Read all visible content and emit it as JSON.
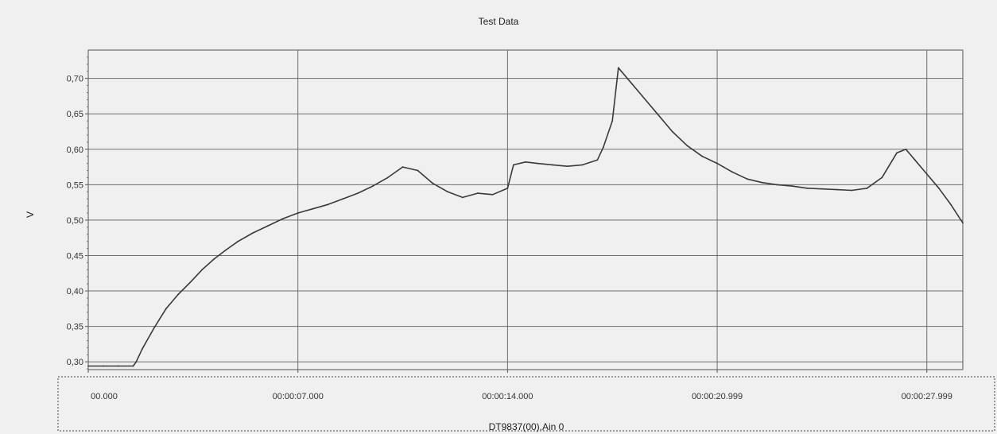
{
  "chart_data": {
    "type": "line",
    "title": "Test Data",
    "ylabel": "V",
    "xlabel": "DT9837(00).Ain 0",
    "ylim": [
      0.289,
      0.74
    ],
    "xlim": [
      0,
      29.2
    ],
    "y_ticks": [
      {
        "value": 0.3,
        "label": "0,30"
      },
      {
        "value": 0.35,
        "label": "0,35"
      },
      {
        "value": 0.4,
        "label": "0,40"
      },
      {
        "value": 0.45,
        "label": "0,45"
      },
      {
        "value": 0.5,
        "label": "0,50"
      },
      {
        "value": 0.55,
        "label": "0,55"
      },
      {
        "value": 0.6,
        "label": "0,60"
      },
      {
        "value": 0.65,
        "label": "0,65"
      },
      {
        "value": 0.7,
        "label": "0,70"
      }
    ],
    "x_ticks": [
      {
        "value": 0,
        "label": "00.000"
      },
      {
        "value": 7.0,
        "label": "00:00:07.000"
      },
      {
        "value": 14.0,
        "label": "00:00:14.000"
      },
      {
        "value": 20.999,
        "label": "00:00:20.999"
      },
      {
        "value": 27.999,
        "label": "00:00:27.999"
      }
    ],
    "grid": true,
    "series": [
      {
        "color": "#3a3a3a",
        "x": [
          0.0,
          0.5,
          1.0,
          1.5,
          1.6,
          1.8,
          2.2,
          2.6,
          3.0,
          3.4,
          3.8,
          4.2,
          4.6,
          5.0,
          5.5,
          6.0,
          6.5,
          7.0,
          7.5,
          8.0,
          8.5,
          9.0,
          9.5,
          10.0,
          10.5,
          11.0,
          11.5,
          12.0,
          12.5,
          13.0,
          13.5,
          14.0,
          14.2,
          14.6,
          15.0,
          15.5,
          16.0,
          16.5,
          17.0,
          17.2,
          17.5,
          17.7,
          18.0,
          18.5,
          19.0,
          19.5,
          20.0,
          20.5,
          21.0,
          21.5,
          22.0,
          22.5,
          23.0,
          23.5,
          24.0,
          24.5,
          25.0,
          25.5,
          26.0,
          26.5,
          27.0,
          27.3,
          27.6,
          28.0,
          28.4,
          28.8,
          29.2
        ],
        "y": [
          0.294,
          0.294,
          0.294,
          0.294,
          0.3,
          0.318,
          0.348,
          0.375,
          0.395,
          0.412,
          0.43,
          0.445,
          0.458,
          0.47,
          0.482,
          0.492,
          0.502,
          0.51,
          0.516,
          0.522,
          0.53,
          0.538,
          0.548,
          0.56,
          0.575,
          0.57,
          0.552,
          0.54,
          0.532,
          0.538,
          0.536,
          0.545,
          0.578,
          0.582,
          0.58,
          0.578,
          0.576,
          0.578,
          0.585,
          0.603,
          0.64,
          0.715,
          0.7,
          0.675,
          0.65,
          0.625,
          0.605,
          0.59,
          0.58,
          0.568,
          0.558,
          0.553,
          0.55,
          0.548,
          0.545,
          0.544,
          0.543,
          0.542,
          0.545,
          0.56,
          0.595,
          0.6,
          0.585,
          0.565,
          0.545,
          0.522,
          0.496
        ]
      }
    ]
  }
}
